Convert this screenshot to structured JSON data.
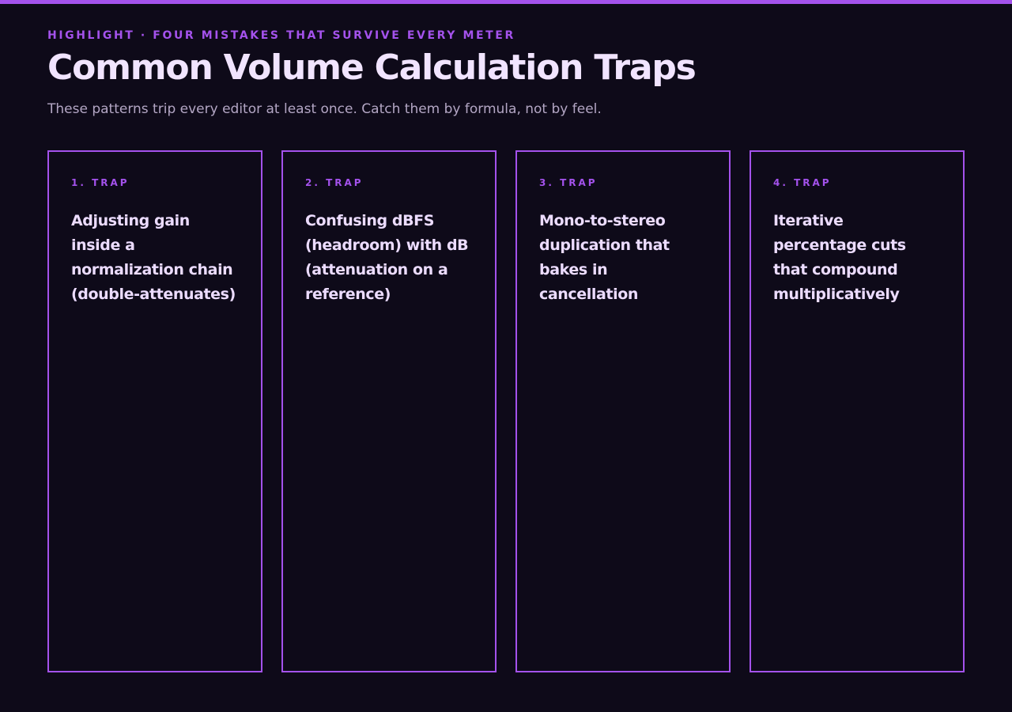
{
  "header": {
    "eyebrow": "HIGHLIGHT · FOUR MISTAKES THAT SURVIVE EVERY METER",
    "title": "Common Volume Calculation Traps",
    "subtitle": "These patterns trip every editor at least once. Catch them by formula, not by feel."
  },
  "cards": [
    {
      "label": "1. TRAP",
      "text": "Adjusting gain inside a normalization chain (double-attenuates)"
    },
    {
      "label": "2. TRAP",
      "text": "Confusing dBFS (headroom) with dB (attenuation on a reference)"
    },
    {
      "label": "3. TRAP",
      "text": "Mono-to-stereo duplication that bakes in cancellation"
    },
    {
      "label": "4. TRAP",
      "text": "Iterative percentage cuts that compound multiplicatively"
    }
  ]
}
